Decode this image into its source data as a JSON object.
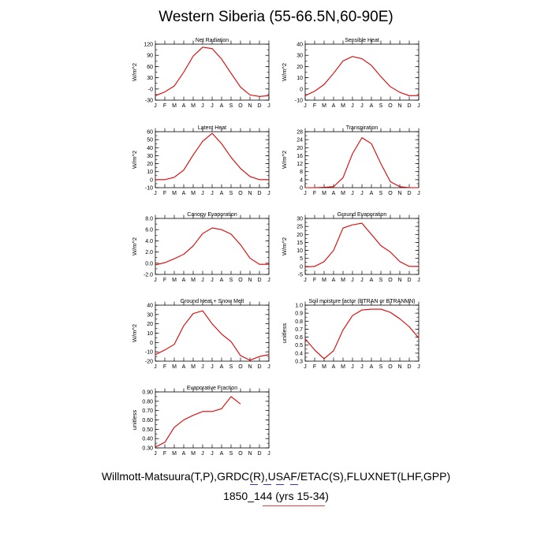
{
  "title": "Western Siberia (55-66.5N,60-90E)",
  "footer": {
    "line1": "Willmott-Matsuura(T,P),GRDC(R),USAF/ETAC(S),FLUXNET(LHF,GPP)",
    "line2": "1850_144 (yrs 15-34)"
  },
  "colors": {
    "series": "#e00000",
    "axis": "#000000",
    "mark_blue": "#3333cc",
    "mark_red": "#e04040"
  },
  "chart_data": [
    {
      "type": "line",
      "title": "Net Radiation",
      "ylabel": "W/m^2",
      "categories": [
        "J",
        "F",
        "M",
        "A",
        "M",
        "J",
        "J",
        "A",
        "S",
        "O",
        "N",
        "D",
        "J"
      ],
      "ylim": [
        -30,
        120
      ],
      "yticks": [
        -30,
        0,
        30,
        60,
        90,
        120
      ],
      "ytick_labels": [
        "-30",
        "-0",
        "30",
        "60",
        "90",
        "120"
      ],
      "ytick_labels_shown": [
        "-30",
        "-0",
        "30",
        "60",
        "90",
        "120"
      ],
      "yticks_labeled": [
        -30,
        0,
        30,
        60,
        90,
        120
      ],
      "yticks_all": [
        -30,
        -15,
        0,
        15,
        30,
        45,
        60,
        75,
        90,
        105,
        120
      ],
      "series": [
        {
          "values": [
            -18,
            -8,
            8,
            45,
            88,
            112,
            108,
            80,
            42,
            5,
            -16,
            -20,
            -18
          ]
        }
      ]
    },
    {
      "type": "line",
      "title": "Sensible Heat",
      "ylabel": "W/m^2",
      "categories": [
        "J",
        "F",
        "M",
        "A",
        "M",
        "J",
        "J",
        "A",
        "S",
        "O",
        "N",
        "D",
        "J"
      ],
      "ylim": [
        -10,
        40
      ],
      "yticks_labeled": [
        -10,
        0,
        10,
        20,
        30,
        40
      ],
      "ytick_labels_shown": [
        "-10",
        "0",
        "10",
        "20",
        "30",
        "40"
      ],
      "yticks_all": [
        -10,
        -5,
        0,
        5,
        10,
        15,
        20,
        25,
        30,
        35,
        40
      ],
      "series": [
        {
          "values": [
            -6,
            -2,
            4,
            14,
            25,
            29,
            27,
            21,
            11,
            2,
            -3,
            -6,
            -6
          ]
        }
      ]
    },
    {
      "type": "line",
      "title": "Latent Heat",
      "ylabel": "W/m^2",
      "categories": [
        "J",
        "F",
        "M",
        "A",
        "M",
        "J",
        "J",
        "A",
        "S",
        "O",
        "N",
        "D",
        "J"
      ],
      "ylim": [
        -10,
        60
      ],
      "yticks_labeled": [
        -10,
        0,
        10,
        20,
        30,
        40,
        50,
        60
      ],
      "ytick_labels_shown": [
        "-10",
        "0",
        "10",
        "20",
        "30",
        "40",
        "50",
        "60"
      ],
      "yticks_all": [
        -10,
        -5,
        0,
        5,
        10,
        15,
        20,
        25,
        30,
        35,
        40,
        45,
        50,
        55,
        60
      ],
      "series": [
        {
          "values": [
            0,
            0,
            3,
            12,
            31,
            48,
            58,
            45,
            28,
            14,
            4,
            0,
            0
          ]
        }
      ]
    },
    {
      "type": "line",
      "title": "Transpiration",
      "ylabel": "W/m^2",
      "categories": [
        "J",
        "F",
        "M",
        "A",
        "M",
        "J",
        "J",
        "A",
        "S",
        "O",
        "N",
        "D",
        "J"
      ],
      "ylim": [
        0,
        28
      ],
      "yticks_labeled": [
        0,
        4,
        8,
        12,
        16,
        20,
        24,
        28
      ],
      "ytick_labels_shown": [
        "0",
        "4",
        "8",
        "12",
        "16",
        "20",
        "24",
        "28"
      ],
      "yticks_all": [
        0,
        2,
        4,
        6,
        8,
        10,
        12,
        14,
        16,
        18,
        20,
        22,
        24,
        26,
        28
      ],
      "series": [
        {
          "values": [
            0,
            0,
            0.2,
            0.5,
            5,
            17,
            25,
            22,
            12,
            3,
            0.5,
            0,
            0
          ]
        }
      ]
    },
    {
      "type": "line",
      "title": "Canopy Evaporation",
      "ylabel": "W/m^2",
      "categories": [
        "J",
        "F",
        "M",
        "A",
        "M",
        "J",
        "J",
        "A",
        "S",
        "O",
        "N",
        "D",
        "J"
      ],
      "ylim": [
        -2,
        8
      ],
      "yticks_labeled": [
        -2,
        0,
        2,
        4,
        6,
        8
      ],
      "ytick_labels_shown": [
        "-2.0",
        "0.0",
        "2.0",
        "4.0",
        "6.0",
        "8.0"
      ],
      "yticks_all": [
        -2,
        -1,
        0,
        1,
        2,
        3,
        4,
        5,
        6,
        7,
        8
      ],
      "series": [
        {
          "values": [
            -0.3,
            0.1,
            0.8,
            1.6,
            3.1,
            5.3,
            6.3,
            6.0,
            5.2,
            3.3,
            0.9,
            -0.2,
            -0.2
          ]
        }
      ]
    },
    {
      "type": "line",
      "title": "Ground Evaporation",
      "ylabel": "W/m^2",
      "categories": [
        "J",
        "F",
        "M",
        "A",
        "M",
        "J",
        "J",
        "A",
        "S",
        "O",
        "N",
        "D",
        "J"
      ],
      "ylim": [
        -5,
        30
      ],
      "yticks_labeled": [
        -5,
        0,
        5,
        10,
        15,
        20,
        25,
        30
      ],
      "ytick_labels_shown": [
        "-5",
        "0",
        "5",
        "10",
        "15",
        "20",
        "25",
        "30"
      ],
      "yticks_all": [
        -5,
        -2.5,
        0,
        2.5,
        5,
        7.5,
        10,
        12.5,
        15,
        17.5,
        20,
        22.5,
        25,
        27.5,
        30
      ],
      "series": [
        {
          "values": [
            -0.3,
            0,
            3,
            10,
            24,
            26,
            27,
            20,
            13,
            9,
            3,
            0,
            0
          ]
        }
      ]
    },
    {
      "type": "line",
      "title": "Ground Heat + Snow Melt",
      "ylabel": "W/m^2",
      "categories": [
        "J",
        "F",
        "M",
        "A",
        "M",
        "J",
        "J",
        "A",
        "S",
        "O",
        "N",
        "D",
        "J"
      ],
      "ylim": [
        -20,
        40
      ],
      "yticks_labeled": [
        -20,
        -10,
        0,
        10,
        20,
        30,
        40
      ],
      "ytick_labels_shown": [
        "-20",
        "-10",
        "0",
        "10",
        "20",
        "30",
        "40"
      ],
      "yticks_all": [
        -20,
        -15,
        -10,
        -5,
        0,
        5,
        10,
        15,
        20,
        25,
        30,
        35,
        40
      ],
      "series": [
        {
          "values": [
            -13,
            -8,
            -2,
            18,
            31,
            34,
            20,
            9,
            1,
            -14,
            -19,
            -15,
            -13
          ]
        }
      ]
    },
    {
      "type": "line",
      "title": "Soil moisture factor (BTRAN or BTRANMN)",
      "ylabel": "unitless",
      "categories": [
        "J",
        "F",
        "M",
        "A",
        "M",
        "J",
        "J",
        "A",
        "S",
        "O",
        "N",
        "D",
        "J"
      ],
      "ylim": [
        0.3,
        1.0
      ],
      "yticks_labeled": [
        0.3,
        0.4,
        0.5,
        0.6,
        0.7,
        0.8,
        0.9,
        1.0
      ],
      "ytick_labels_shown": [
        "0.3",
        "0.4",
        "0.5",
        "0.6",
        "0.7",
        "0.8",
        "0.9",
        "1.0"
      ],
      "yticks_all": [
        0.3,
        0.35,
        0.4,
        0.45,
        0.5,
        0.55,
        0.6,
        0.65,
        0.7,
        0.75,
        0.8,
        0.85,
        0.9,
        0.95,
        1.0
      ],
      "series": [
        {
          "values": [
            0.58,
            0.44,
            0.33,
            0.43,
            0.69,
            0.87,
            0.94,
            0.95,
            0.95,
            0.91,
            0.83,
            0.73,
            0.59
          ]
        }
      ]
    },
    {
      "type": "line",
      "title": "Evaporative Fraction",
      "ylabel": "unitless",
      "categories": [
        "J",
        "F",
        "M",
        "A",
        "M",
        "J",
        "J",
        "A",
        "S",
        "O",
        "N",
        "D",
        "J"
      ],
      "ylim": [
        0.3,
        0.9
      ],
      "yticks_labeled": [
        0.3,
        0.4,
        0.5,
        0.6,
        0.7,
        0.8,
        0.9
      ],
      "ytick_labels_shown": [
        "0.30",
        "0.40",
        "0.50",
        "0.60",
        "0.70",
        "0.80",
        "0.90"
      ],
      "yticks_all": [
        0.3,
        0.35,
        0.4,
        0.45,
        0.5,
        0.55,
        0.6,
        0.65,
        0.7,
        0.75,
        0.8,
        0.85,
        0.9
      ],
      "series": [
        {
          "values": [
            0.31,
            0.36,
            0.52,
            0.6,
            0.65,
            0.69,
            0.69,
            0.72,
            0.85,
            0.77,
            null,
            null,
            null
          ]
        }
      ]
    }
  ]
}
